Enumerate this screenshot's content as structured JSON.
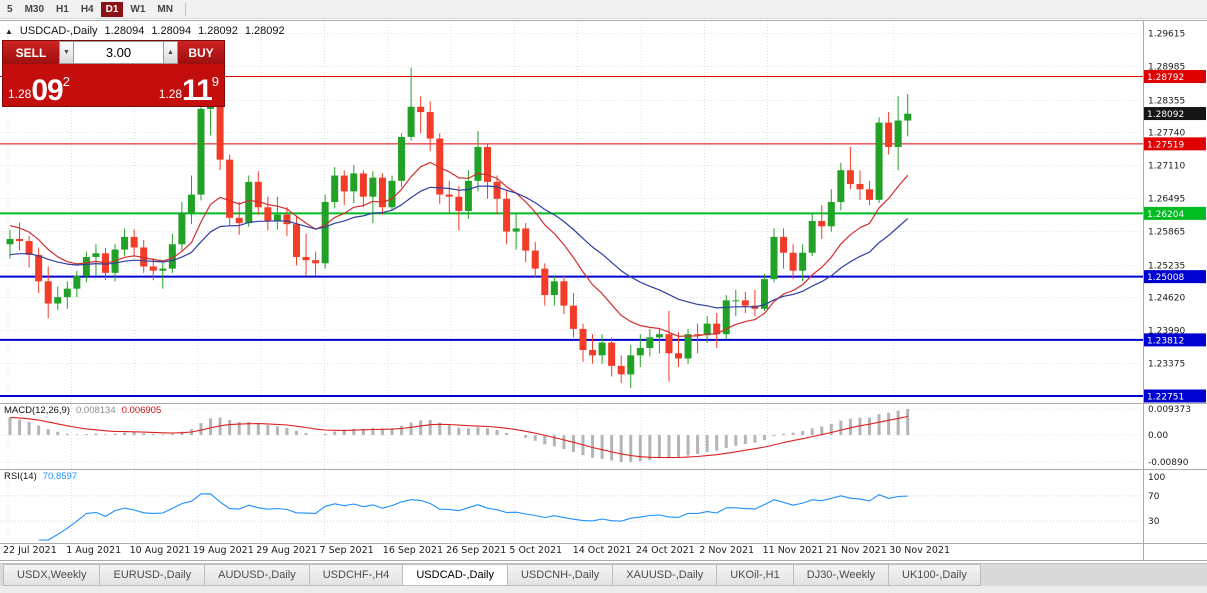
{
  "colors": {
    "up": "#21a126",
    "down": "#f23c28",
    "ma_fast": "#cf2f2f",
    "ma_slow": "#2e3f9e",
    "macd_hist": "#b4b4b4",
    "macd_signal": "#dd2020",
    "rsi": "#1E90FF",
    "grid": "#e0e0e0",
    "panel_border": "#ababab"
  },
  "icons": {
    "chart_marker": "▲",
    "volume_down": "▼",
    "volume_up": "▲"
  },
  "toolbar": {
    "timeframes": [
      {
        "label": "5",
        "active": false
      },
      {
        "label": "M30",
        "active": false
      },
      {
        "label": "H1",
        "active": false
      },
      {
        "label": "H4",
        "active": false
      },
      {
        "label": "D1",
        "active": true
      },
      {
        "label": "W1",
        "active": false
      },
      {
        "label": "MN",
        "active": false
      }
    ]
  },
  "chart_header": {
    "symbol": "USDCAD-,Daily",
    "open": "1.28094",
    "high": "1.28094",
    "low": "1.28092",
    "close": "1.28092"
  },
  "trade_panel": {
    "sell_label": "SELL",
    "buy_label": "BUY",
    "volume": "3.00",
    "sell_price_main": "1.28",
    "sell_price_big": "09",
    "sell_price_sup": "2",
    "buy_price_main": "1.28",
    "buy_price_big": "11",
    "buy_price_sup": "9"
  },
  "indicators": {
    "macd_label": "MACD(12,26,9)",
    "macd_v1": "0.008134",
    "macd_v2": "0.006905",
    "macd_axis": [
      "0.009373",
      "0.00",
      "-0.00890"
    ],
    "rsi_label": "RSI(14)",
    "rsi_value": "70.8597",
    "rsi_axis": [
      "100",
      "70",
      "30"
    ]
  },
  "tabs": [
    {
      "label": "USDX,Weekly",
      "active": false
    },
    {
      "label": "EURUSD-,Daily",
      "active": false
    },
    {
      "label": "AUDUSD-,Daily",
      "active": false
    },
    {
      "label": "USDCHF-,H4",
      "active": false
    },
    {
      "label": "USDCAD-,Daily",
      "active": true
    },
    {
      "label": "USDCNH-,Daily",
      "active": false
    },
    {
      "label": "XAUUSD-,Daily",
      "active": false
    },
    {
      "label": "UKOil-,H1",
      "active": false
    },
    {
      "label": "DJ30-,Weekly",
      "active": false
    },
    {
      "label": "UK100-,Daily",
      "active": false
    }
  ],
  "chart_data": {
    "type": "candlestick",
    "symbol": "USDCAD-,Daily",
    "current_price": "1.28092",
    "x_labels": [
      "22 Jul 2021",
      "1 Aug 2021",
      "10 Aug 2021",
      "19 Aug 2021",
      "29 Aug 2021",
      "7 Sep 2021",
      "16 Sep 2021",
      "26 Sep 2021",
      "5 Oct 2021",
      "14 Oct 2021",
      "24 Oct 2021",
      "2 Nov 2021",
      "11 Nov 2021",
      "21 Nov 2021",
      "30 Nov 2021"
    ],
    "y_ticks": [
      "1.29615",
      "1.28985",
      "1.28355",
      "1.27740",
      "1.27110",
      "1.26495",
      "1.25865",
      "1.25235",
      "1.24620",
      "1.23990",
      "1.23375"
    ],
    "h_lines": [
      {
        "price": 1.28792,
        "label": "1.28792",
        "color": "#e00000",
        "w": 1
      },
      {
        "price": 1.28092,
        "label": "1.28092",
        "color": "#151515",
        "tag_only": true
      },
      {
        "price": 1.27519,
        "label": "1.27519",
        "color": "#e00000",
        "w": 1
      },
      {
        "price": 1.26204,
        "label": "1.26204",
        "color": "#00bb22",
        "w": 2
      },
      {
        "price": 1.25008,
        "label": "1.25008",
        "color": "#0000d0",
        "w": 2
      },
      {
        "price": 1.23812,
        "label": "1.23812",
        "color": "#0000d0",
        "w": 2
      },
      {
        "price": 1.22751,
        "label": "1.22751",
        "color": "#0000d0",
        "w": 2
      }
    ],
    "overlays": [
      {
        "name": "EMA12",
        "color_key": "ma_fast"
      },
      {
        "name": "EMA26",
        "color_key": "ma_slow"
      }
    ],
    "candles": [
      [
        1.2562,
        1.259,
        1.2535,
        1.2572
      ],
      [
        1.2572,
        1.2603,
        1.255,
        1.2568
      ],
      [
        1.2568,
        1.2578,
        1.2518,
        1.2542
      ],
      [
        1.2542,
        1.2556,
        1.247,
        1.2492
      ],
      [
        1.2492,
        1.252,
        1.2422,
        1.245
      ],
      [
        1.245,
        1.2482,
        1.2438,
        1.2462
      ],
      [
        1.2462,
        1.2492,
        1.244,
        1.2478
      ],
      [
        1.2478,
        1.2512,
        1.2462,
        1.2502
      ],
      [
        1.2502,
        1.2548,
        1.249,
        1.2538
      ],
      [
        1.2538,
        1.2562,
        1.2502,
        1.2545
      ],
      [
        1.2545,
        1.2555,
        1.2495,
        1.2508
      ],
      [
        1.2508,
        1.2562,
        1.2492,
        1.2552
      ],
      [
        1.2552,
        1.2592,
        1.254,
        1.2576
      ],
      [
        1.2576,
        1.259,
        1.2538,
        1.2556
      ],
      [
        1.2556,
        1.257,
        1.2508,
        1.252
      ],
      [
        1.252,
        1.2536,
        1.2494,
        1.2512
      ],
      [
        1.2512,
        1.2528,
        1.2478,
        1.2516
      ],
      [
        1.2516,
        1.2582,
        1.2508,
        1.2562
      ],
      [
        1.2562,
        1.2642,
        1.255,
        1.2622
      ],
      [
        1.2622,
        1.2692,
        1.26,
        1.2656
      ],
      [
        1.2656,
        1.2842,
        1.2645,
        1.2818
      ],
      [
        1.2818,
        1.2892,
        1.2768,
        1.2822
      ],
      [
        1.2822,
        1.2832,
        1.2702,
        1.2722
      ],
      [
        1.2722,
        1.2732,
        1.2596,
        1.2612
      ],
      [
        1.2612,
        1.2642,
        1.258,
        1.2602
      ],
      [
        1.2602,
        1.2692,
        1.2595,
        1.268
      ],
      [
        1.268,
        1.27,
        1.2618,
        1.2632
      ],
      [
        1.2632,
        1.2652,
        1.2588,
        1.2606
      ],
      [
        1.2606,
        1.2652,
        1.259,
        1.2618
      ],
      [
        1.2618,
        1.2632,
        1.2578,
        1.26
      ],
      [
        1.26,
        1.2616,
        1.2522,
        1.2538
      ],
      [
        1.2538,
        1.2582,
        1.2502,
        1.2532
      ],
      [
        1.2532,
        1.2548,
        1.2502,
        1.2526
      ],
      [
        1.2526,
        1.2656,
        1.2516,
        1.2642
      ],
      [
        1.2642,
        1.2708,
        1.263,
        1.2692
      ],
      [
        1.2692,
        1.2702,
        1.2636,
        1.2662
      ],
      [
        1.2662,
        1.2712,
        1.264,
        1.2696
      ],
      [
        1.2696,
        1.2702,
        1.2632,
        1.2652
      ],
      [
        1.2652,
        1.27,
        1.2602,
        1.2688
      ],
      [
        1.2688,
        1.2696,
        1.2618,
        1.2632
      ],
      [
        1.2632,
        1.2692,
        1.2625,
        1.2682
      ],
      [
        1.2682,
        1.2772,
        1.267,
        1.2765
      ],
      [
        1.2765,
        1.2896,
        1.2758,
        1.2822
      ],
      [
        1.2822,
        1.2842,
        1.2772,
        1.2812
      ],
      [
        1.2812,
        1.2832,
        1.2738,
        1.2762
      ],
      [
        1.2762,
        1.2772,
        1.2638,
        1.2656
      ],
      [
        1.2656,
        1.2682,
        1.262,
        1.2652
      ],
      [
        1.2652,
        1.2672,
        1.2588,
        1.2625
      ],
      [
        1.2625,
        1.2702,
        1.261,
        1.2682
      ],
      [
        1.2682,
        1.2776,
        1.2662,
        1.2746
      ],
      [
        1.2746,
        1.2752,
        1.2648,
        1.268
      ],
      [
        1.268,
        1.2692,
        1.2618,
        1.2648
      ],
      [
        1.2648,
        1.2665,
        1.2562,
        1.2586
      ],
      [
        1.2586,
        1.2622,
        1.2552,
        1.2592
      ],
      [
        1.2592,
        1.2602,
        1.2528,
        1.255
      ],
      [
        1.255,
        1.2566,
        1.25,
        1.2516
      ],
      [
        1.2516,
        1.2526,
        1.2446,
        1.2466
      ],
      [
        1.2466,
        1.2502,
        1.2446,
        1.2492
      ],
      [
        1.2492,
        1.2502,
        1.243,
        1.2446
      ],
      [
        1.2446,
        1.247,
        1.2386,
        1.2402
      ],
      [
        1.2402,
        1.2412,
        1.234,
        1.2362
      ],
      [
        1.2362,
        1.2392,
        1.2336,
        1.2352
      ],
      [
        1.2352,
        1.2392,
        1.2336,
        1.2376
      ],
      [
        1.2376,
        1.2386,
        1.2312,
        1.2332
      ],
      [
        1.2332,
        1.2352,
        1.23,
        1.2316
      ],
      [
        1.2316,
        1.2372,
        1.229,
        1.2352
      ],
      [
        1.2352,
        1.2392,
        1.233,
        1.2366
      ],
      [
        1.2366,
        1.2402,
        1.235,
        1.2386
      ],
      [
        1.2386,
        1.2402,
        1.2356,
        1.2392
      ],
      [
        1.2392,
        1.2436,
        1.2302,
        1.2356
      ],
      [
        1.2356,
        1.2396,
        1.233,
        1.2346
      ],
      [
        1.2346,
        1.2402,
        1.2336,
        1.2392
      ],
      [
        1.2392,
        1.2412,
        1.2356,
        1.239
      ],
      [
        1.239,
        1.2426,
        1.2376,
        1.2412
      ],
      [
        1.2412,
        1.2432,
        1.2366,
        1.2392
      ],
      [
        1.2392,
        1.2466,
        1.2382,
        1.2456
      ],
      [
        1.2456,
        1.2476,
        1.2426,
        1.2456
      ],
      [
        1.2456,
        1.2472,
        1.2432,
        1.2446
      ],
      [
        1.2446,
        1.2476,
        1.2426,
        1.244
      ],
      [
        1.244,
        1.2506,
        1.2436,
        1.2496
      ],
      [
        1.2496,
        1.2592,
        1.249,
        1.2576
      ],
      [
        1.2576,
        1.2592,
        1.2516,
        1.2546
      ],
      [
        1.2546,
        1.2562,
        1.2496,
        1.2512
      ],
      [
        1.2512,
        1.2562,
        1.2492,
        1.2546
      ],
      [
        1.2546,
        1.2622,
        1.254,
        1.2606
      ],
      [
        1.2606,
        1.2636,
        1.2572,
        1.2596
      ],
      [
        1.2596,
        1.2666,
        1.2586,
        1.2642
      ],
      [
        1.2642,
        1.2716,
        1.2626,
        1.2702
      ],
      [
        1.2702,
        1.2746,
        1.2666,
        1.2676
      ],
      [
        1.2676,
        1.2702,
        1.2646,
        1.2666
      ],
      [
        1.2666,
        1.2682,
        1.2636,
        1.2646
      ],
      [
        1.2646,
        1.2802,
        1.264,
        1.2792
      ],
      [
        1.2792,
        1.2812,
        1.2732,
        1.2746
      ],
      [
        1.2746,
        1.2842,
        1.2702,
        1.2796
      ],
      [
        1.2796,
        1.2846,
        1.2766,
        1.2809
      ]
    ]
  }
}
